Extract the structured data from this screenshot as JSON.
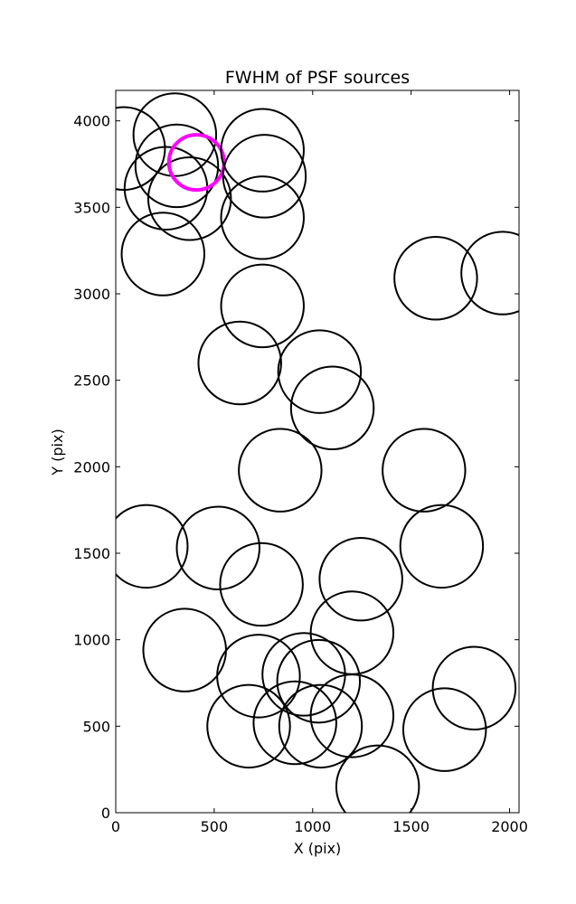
{
  "chart_data": {
    "type": "scatter",
    "title": "FWHM of PSF sources",
    "xlabel": "X (pix)",
    "ylabel": "Y (pix)",
    "xlim": [
      0,
      2048
    ],
    "ylim": [
      0,
      4176
    ],
    "xticks": [
      0,
      500,
      1000,
      1500,
      2000
    ],
    "yticks": [
      0,
      500,
      1000,
      1500,
      2000,
      2500,
      3000,
      3500,
      4000
    ],
    "grid": false,
    "marker": "circle",
    "colors": {
      "default": "#000000",
      "highlight": "#ff00ff"
    },
    "points": [
      {
        "x": 40,
        "y": 3840,
        "r": 210
      },
      {
        "x": 300,
        "y": 3920,
        "r": 210
      },
      {
        "x": 310,
        "y": 3740,
        "r": 210
      },
      {
        "x": 255,
        "y": 3610,
        "r": 210
      },
      {
        "x": 375,
        "y": 3550,
        "r": 210
      },
      {
        "x": 410,
        "y": 3760,
        "r": 140,
        "highlight": true
      },
      {
        "x": 240,
        "y": 3230,
        "r": 210
      },
      {
        "x": 745,
        "y": 3830,
        "r": 210
      },
      {
        "x": 755,
        "y": 3680,
        "r": 210
      },
      {
        "x": 745,
        "y": 3440,
        "r": 210
      },
      {
        "x": 745,
        "y": 2930,
        "r": 210
      },
      {
        "x": 630,
        "y": 2600,
        "r": 210
      },
      {
        "x": 1035,
        "y": 2550,
        "r": 210
      },
      {
        "x": 1100,
        "y": 2340,
        "r": 210
      },
      {
        "x": 1625,
        "y": 3090,
        "r": 210
      },
      {
        "x": 1965,
        "y": 3120,
        "r": 210
      },
      {
        "x": 835,
        "y": 1980,
        "r": 210
      },
      {
        "x": 1565,
        "y": 1980,
        "r": 210
      },
      {
        "x": 155,
        "y": 1540,
        "r": 210
      },
      {
        "x": 520,
        "y": 1530,
        "r": 210
      },
      {
        "x": 740,
        "y": 1320,
        "r": 210
      },
      {
        "x": 1245,
        "y": 1350,
        "r": 210
      },
      {
        "x": 1655,
        "y": 1540,
        "r": 210
      },
      {
        "x": 1200,
        "y": 1040,
        "r": 210
      },
      {
        "x": 350,
        "y": 940,
        "r": 210
      },
      {
        "x": 725,
        "y": 790,
        "r": 210
      },
      {
        "x": 955,
        "y": 800,
        "r": 210
      },
      {
        "x": 1030,
        "y": 760,
        "r": 210
      },
      {
        "x": 675,
        "y": 500,
        "r": 210
      },
      {
        "x": 910,
        "y": 520,
        "r": 210
      },
      {
        "x": 1040,
        "y": 500,
        "r": 210
      },
      {
        "x": 1200,
        "y": 560,
        "r": 210
      },
      {
        "x": 1670,
        "y": 480,
        "r": 210
      },
      {
        "x": 1820,
        "y": 720,
        "r": 210
      },
      {
        "x": 1330,
        "y": 150,
        "r": 210
      }
    ]
  }
}
